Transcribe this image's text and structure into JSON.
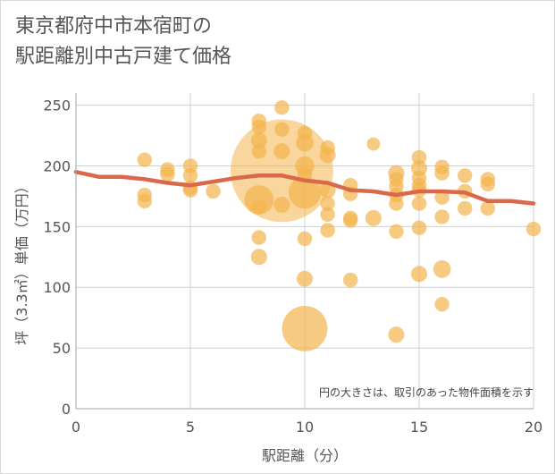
{
  "title_lines": [
    "東京都府中市本宿町の",
    "駅距離別中古戸建て価格"
  ],
  "chart_data": {
    "type": "scatter",
    "title": "東京都府中市本宿町の駅距離別中古戸建て価格",
    "xlabel": "駅距離（分）",
    "ylabel": "坪（3.3㎡）単価（万円）",
    "xlim": [
      0,
      20
    ],
    "ylim": [
      0,
      260
    ],
    "xticks": [
      0,
      5,
      10,
      15,
      20
    ],
    "yticks": [
      0,
      50,
      100,
      150,
      200,
      250
    ],
    "grid": true,
    "note": "円の大きさは、取引のあった物件面積を示す",
    "colors": {
      "points": "#f4b44c",
      "trend": "#d9694a",
      "grid": "#c8d1dc"
    },
    "points": [
      {
        "x": 3,
        "y": 205,
        "s": 1
      },
      {
        "x": 3,
        "y": 176,
        "s": 1
      },
      {
        "x": 3,
        "y": 171,
        "s": 1
      },
      {
        "x": 4,
        "y": 197,
        "s": 1
      },
      {
        "x": 4,
        "y": 193,
        "s": 1
      },
      {
        "x": 5,
        "y": 200,
        "s": 1
      },
      {
        "x": 5,
        "y": 192,
        "s": 1
      },
      {
        "x": 5,
        "y": 182,
        "s": 1
      },
      {
        "x": 5,
        "y": 180,
        "s": 1
      },
      {
        "x": 6,
        "y": 179,
        "s": 1
      },
      {
        "x": 8,
        "y": 237,
        "s": 1
      },
      {
        "x": 8,
        "y": 232,
        "s": 1
      },
      {
        "x": 8,
        "y": 221,
        "s": 1.1
      },
      {
        "x": 8,
        "y": 212,
        "s": 1
      },
      {
        "x": 8,
        "y": 172,
        "s": 2
      },
      {
        "x": 8,
        "y": 166,
        "s": 1
      },
      {
        "x": 8,
        "y": 141,
        "s": 1
      },
      {
        "x": 8,
        "y": 125,
        "s": 1.1
      },
      {
        "x": 9,
        "y": 248,
        "s": 1
      },
      {
        "x": 9,
        "y": 230,
        "s": 1
      },
      {
        "x": 9,
        "y": 212,
        "s": 1.1
      },
      {
        "x": 9,
        "y": 196,
        "s": 7
      },
      {
        "x": 9,
        "y": 168,
        "s": 1.1
      },
      {
        "x": 10,
        "y": 227,
        "s": 1
      },
      {
        "x": 10,
        "y": 219,
        "s": 1.2
      },
      {
        "x": 10,
        "y": 200,
        "s": 1.3
      },
      {
        "x": 10,
        "y": 193,
        "s": 1
      },
      {
        "x": 10,
        "y": 178,
        "s": 2.2
      },
      {
        "x": 10,
        "y": 140,
        "s": 1
      },
      {
        "x": 10,
        "y": 107,
        "s": 1.1
      },
      {
        "x": 10,
        "y": 66,
        "s": 3.1
      },
      {
        "x": 11,
        "y": 215,
        "s": 1
      },
      {
        "x": 11,
        "y": 209,
        "s": 1.1
      },
      {
        "x": 11,
        "y": 180,
        "s": 1.1
      },
      {
        "x": 11,
        "y": 169,
        "s": 1
      },
      {
        "x": 11,
        "y": 160,
        "s": 1
      },
      {
        "x": 11,
        "y": 147,
        "s": 1
      },
      {
        "x": 12,
        "y": 184,
        "s": 1
      },
      {
        "x": 12,
        "y": 177,
        "s": 1
      },
      {
        "x": 12,
        "y": 157,
        "s": 1
      },
      {
        "x": 12,
        "y": 155,
        "s": 1
      },
      {
        "x": 12,
        "y": 106,
        "s": 1
      },
      {
        "x": 13,
        "y": 218,
        "s": 0.9
      },
      {
        "x": 13,
        "y": 157,
        "s": 1.1
      },
      {
        "x": 14,
        "y": 194,
        "s": 1.1
      },
      {
        "x": 14,
        "y": 189,
        "s": 1
      },
      {
        "x": 14,
        "y": 183,
        "s": 1
      },
      {
        "x": 14,
        "y": 176,
        "s": 1
      },
      {
        "x": 14,
        "y": 169,
        "s": 1
      },
      {
        "x": 14,
        "y": 146,
        "s": 1
      },
      {
        "x": 14,
        "y": 61,
        "s": 1.1
      },
      {
        "x": 15,
        "y": 207,
        "s": 1
      },
      {
        "x": 15,
        "y": 198,
        "s": 1.1
      },
      {
        "x": 15,
        "y": 190,
        "s": 1
      },
      {
        "x": 15,
        "y": 184,
        "s": 1
      },
      {
        "x": 15,
        "y": 180,
        "s": 1
      },
      {
        "x": 15,
        "y": 169,
        "s": 1
      },
      {
        "x": 15,
        "y": 149,
        "s": 1
      },
      {
        "x": 15,
        "y": 111,
        "s": 1.1
      },
      {
        "x": 16,
        "y": 199,
        "s": 1
      },
      {
        "x": 16,
        "y": 194,
        "s": 1
      },
      {
        "x": 16,
        "y": 174,
        "s": 1
      },
      {
        "x": 16,
        "y": 158,
        "s": 1
      },
      {
        "x": 16,
        "y": 115,
        "s": 1.2
      },
      {
        "x": 16,
        "y": 86,
        "s": 1
      },
      {
        "x": 17,
        "y": 192,
        "s": 1
      },
      {
        "x": 17,
        "y": 179,
        "s": 1
      },
      {
        "x": 17,
        "y": 165,
        "s": 1
      },
      {
        "x": 18,
        "y": 189,
        "s": 1
      },
      {
        "x": 18,
        "y": 185,
        "s": 1
      },
      {
        "x": 18,
        "y": 165,
        "s": 1
      },
      {
        "x": 20,
        "y": 148,
        "s": 1
      }
    ],
    "trend": {
      "x": [
        0,
        1,
        2,
        3,
        4,
        5,
        6,
        7,
        8,
        9,
        10,
        11,
        12,
        13,
        14,
        15,
        16,
        17,
        18,
        19,
        20
      ],
      "y": [
        195,
        191,
        191,
        189,
        186,
        184,
        187,
        190,
        192,
        192,
        188,
        186,
        180,
        179,
        176,
        179,
        179,
        178,
        171,
        171,
        169
      ]
    }
  }
}
